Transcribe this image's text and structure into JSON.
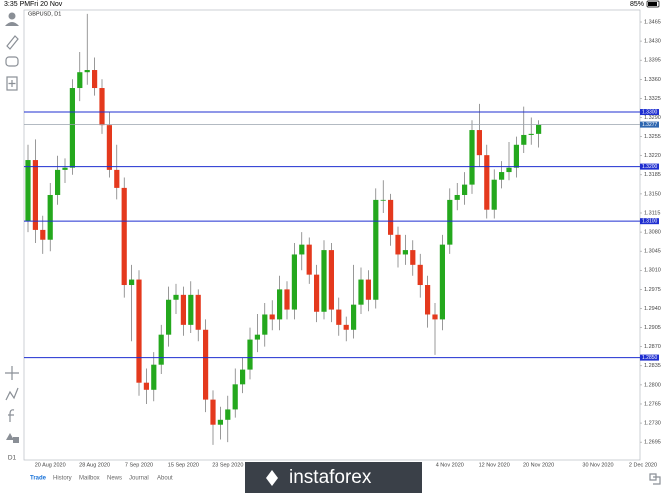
{
  "status_bar": {
    "time": "3:35 PM",
    "date": "Fri 20 Nov",
    "battery": "85%"
  },
  "timeframe_button": "D1",
  "chart_data": {
    "type": "candlestick",
    "symbol": "GBPUSD, D1",
    "categories": [
      null,
      null,
      null,
      "20 Aug 2020",
      null,
      null,
      null,
      null,
      null,
      "28 Aug 2020",
      null,
      null,
      null,
      null,
      null,
      "7 Sep 2020",
      null,
      null,
      null,
      null,
      null,
      "15 Sep 2020",
      null,
      null,
      null,
      null,
      null,
      "23 Sep 2020",
      null,
      null,
      null,
      null,
      null,
      null,
      null,
      null,
      null,
      null,
      null,
      null,
      null,
      null,
      null,
      null,
      null,
      null,
      null,
      null,
      null,
      null,
      null,
      null,
      null,
      null,
      null,
      null,
      null,
      "4 Nov 2020",
      null,
      null,
      null,
      null,
      null,
      "12 Nov 2020",
      null,
      null,
      null,
      null,
      null,
      "20 Nov 2020"
    ],
    "future_labels": [
      "30 Nov 2020",
      "2 Dec 2020"
    ],
    "open": [
      1.31,
      1.3212,
      1.3084,
      1.3066,
      1.3148,
      1.3194,
      1.3198,
      1.3344,
      1.3373,
      1.3377,
      1.3344,
      1.3276,
      1.3194,
      1.3161,
      1.2983,
      1.2993,
      1.2804,
      1.2791,
      1.2837,
      1.2892,
      1.2956,
      1.2965,
      1.291,
      1.2965,
      1.2901,
      1.2773,
      1.2727,
      1.2736,
      1.2755,
      1.2801,
      1.2828,
      1.2883,
      1.2892,
      1.2929,
      1.292,
      1.2975,
      1.2938,
      1.3039,
      1.3057,
      1.3002,
      1.2934,
      1.3047,
      1.2938,
      1.291,
      1.2901,
      1.2947,
      1.2993,
      1.2956,
      1.3139,
      1.3139,
      1.3075,
      1.3039,
      1.3047,
      1.302,
      1.2983,
      1.2929,
      1.292,
      1.3057,
      1.3139,
      1.3148,
      1.3167,
      1.3267,
      1.3221,
      1.3121,
      1.3176,
      1.319,
      1.3198,
      1.324,
      1.3258,
      1.326
    ],
    "high": [
      1.324,
      1.325,
      1.311,
      1.317,
      1.322,
      1.3215,
      1.336,
      1.341,
      1.348,
      1.34,
      1.336,
      1.33,
      1.324,
      1.318,
      1.302,
      1.301,
      1.283,
      1.286,
      1.291,
      1.298,
      1.2985,
      1.298,
      1.299,
      1.2975,
      1.292,
      1.279,
      1.276,
      1.278,
      1.283,
      1.285,
      1.2905,
      1.293,
      1.295,
      1.2955,
      1.3,
      1.299,
      1.306,
      1.308,
      1.307,
      1.302,
      1.3065,
      1.306,
      1.296,
      1.2925,
      1.302,
      1.3015,
      1.301,
      1.316,
      1.3175,
      1.315,
      1.309,
      1.3075,
      1.3065,
      1.304,
      1.3,
      1.295,
      1.3075,
      1.316,
      1.317,
      1.319,
      1.3285,
      1.3315,
      1.324,
      1.3195,
      1.321,
      1.3245,
      1.3255,
      1.331,
      1.329,
      1.3285
    ],
    "low": [
      1.308,
      1.306,
      1.304,
      1.3045,
      1.313,
      1.317,
      1.3185,
      1.332,
      1.335,
      1.333,
      1.326,
      1.318,
      1.314,
      1.296,
      1.288,
      1.278,
      1.2765,
      1.277,
      1.282,
      1.287,
      1.293,
      1.289,
      1.2895,
      1.288,
      1.275,
      1.269,
      1.27,
      1.2695,
      1.274,
      1.2785,
      1.281,
      1.286,
      1.287,
      1.29,
      1.29,
      1.292,
      1.292,
      1.301,
      1.2985,
      1.2915,
      1.292,
      1.2915,
      1.289,
      1.288,
      1.2885,
      1.293,
      1.2935,
      1.294,
      1.3115,
      1.3055,
      1.3015,
      1.302,
      1.3,
      1.296,
      1.2905,
      1.2855,
      1.29,
      1.304,
      1.312,
      1.313,
      1.315,
      1.32,
      1.3105,
      1.3105,
      1.316,
      1.3175,
      1.318,
      1.3225,
      1.324,
      1.3235
    ],
    "close": [
      1.3212,
      1.3084,
      1.3066,
      1.3148,
      1.3194,
      1.3198,
      1.3344,
      1.3373,
      1.3377,
      1.3344,
      1.3276,
      1.3194,
      1.3161,
      1.2983,
      1.2993,
      1.2804,
      1.2791,
      1.2837,
      1.2892,
      1.2956,
      1.2965,
      1.291,
      1.2965,
      1.2901,
      1.2773,
      1.2727,
      1.2736,
      1.2755,
      1.2801,
      1.2828,
      1.2883,
      1.2892,
      1.2929,
      1.292,
      1.2975,
      1.2938,
      1.3039,
      1.3057,
      1.3002,
      1.2934,
      1.3047,
      1.2938,
      1.291,
      1.2901,
      1.2947,
      1.2993,
      1.2956,
      1.3139,
      1.3139,
      1.3075,
      1.3039,
      1.3047,
      1.302,
      1.2983,
      1.2929,
      1.292,
      1.3057,
      1.3139,
      1.3148,
      1.3167,
      1.3267,
      1.3221,
      1.3121,
      1.3176,
      1.319,
      1.3198,
      1.324,
      1.3258,
      1.326,
      1.3277
    ],
    "up_color": "#24a81d",
    "down_color": "#e4391d",
    "ylim": [
      1.2666,
      1.3487
    ],
    "yticks": [
      1.3465,
      {
        "value": 1.343,
        "label": "1.3430"
      },
      1.3395,
      {
        "value": 1.336,
        "label": "1.3360"
      },
      1.3325,
      {
        "value": 1.329,
        "label": "1.3290"
      },
      1.3255,
      {
        "value": 1.322,
        "label": "1.3220"
      },
      1.3185,
      {
        "value": 1.315,
        "label": "1.3150"
      },
      1.3115,
      {
        "value": 1.308,
        "label": "1.3080"
      },
      1.3045,
      {
        "value": 1.301,
        "label": "1.3010"
      },
      1.2975,
      {
        "value": 1.294,
        "label": "1.2940"
      },
      1.2905,
      {
        "value": 1.287,
        "label": "1.2870"
      },
      1.2835,
      {
        "value": 1.28,
        "label": "1.2800"
      },
      1.2765,
      {
        "value": 1.273,
        "label": "1.2730"
      },
      1.2695
    ],
    "levels": [
      {
        "value": 1.33,
        "label": "1.3300"
      },
      {
        "value": 1.32,
        "label": "1.3200"
      },
      {
        "value": 1.31,
        "label": "1.3100"
      },
      {
        "value": 1.285,
        "label": "1.2850"
      }
    ],
    "level_color": "#1f2fd0",
    "bid": 1.3277,
    "bid_color": "#9aa3ad"
  },
  "tabs": [
    "Trade",
    "History",
    "Mailbox",
    "News",
    "Journal",
    "About"
  ],
  "active_tab": 0,
  "watermark": "instaforex"
}
